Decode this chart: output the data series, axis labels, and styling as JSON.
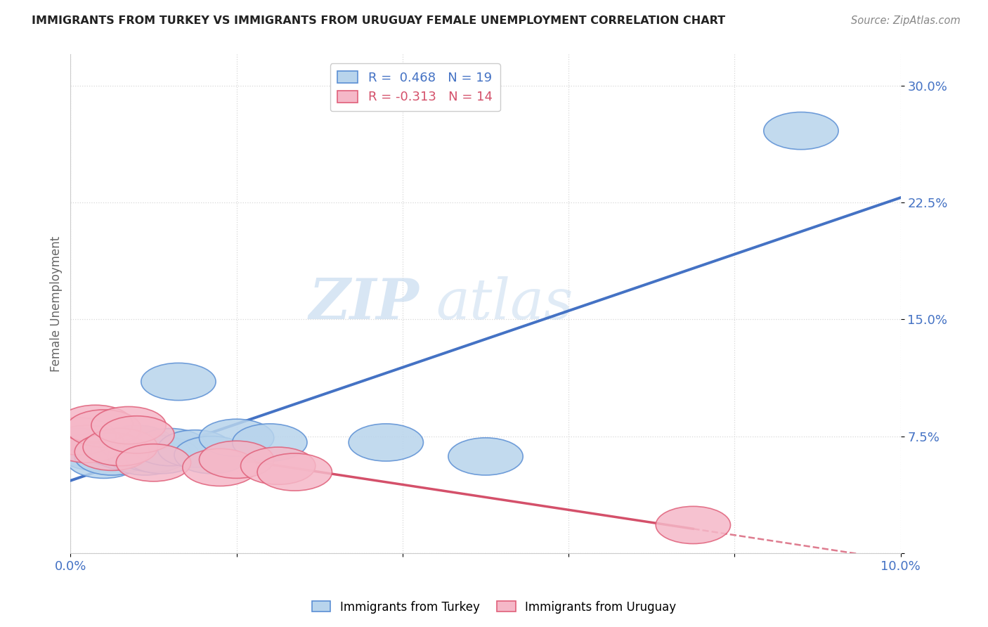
{
  "title": "IMMIGRANTS FROM TURKEY VS IMMIGRANTS FROM URUGUAY FEMALE UNEMPLOYMENT CORRELATION CHART",
  "source": "Source: ZipAtlas.com",
  "ylabel": "Female Unemployment",
  "xlim": [
    0.0,
    0.1
  ],
  "ylim": [
    0.0,
    0.32
  ],
  "xticks": [
    0.0,
    0.02,
    0.04,
    0.06,
    0.08,
    0.1
  ],
  "yticks": [
    0.0,
    0.075,
    0.15,
    0.225,
    0.3
  ],
  "ytick_labels": [
    "",
    "7.5%",
    "15.0%",
    "22.5%",
    "30.0%"
  ],
  "xtick_labels": [
    "0.0%",
    "",
    "",
    "",
    "",
    "10.0%"
  ],
  "turkey_R": 0.468,
  "turkey_N": 19,
  "uruguay_R": -0.313,
  "uruguay_N": 14,
  "turkey_color": "#b8d4ec",
  "turkey_edge_color": "#5b8fd4",
  "uruguay_color": "#f5b8c8",
  "uruguay_edge_color": "#e0607a",
  "turkey_line_color": "#4472c4",
  "uruguay_line_color": "#d4506a",
  "background_color": "#ffffff",
  "grid_color": "#d8d8d8",
  "turkey_x": [
    0.001,
    0.003,
    0.004,
    0.005,
    0.006,
    0.007,
    0.008,
    0.009,
    0.01,
    0.011,
    0.012,
    0.013,
    0.015,
    0.017,
    0.02,
    0.024,
    0.038,
    0.05,
    0.088
  ],
  "turkey_y": [
    0.068,
    0.065,
    0.06,
    0.062,
    0.067,
    0.065,
    0.07,
    0.062,
    0.064,
    0.063,
    0.068,
    0.11,
    0.067,
    0.063,
    0.074,
    0.071,
    0.071,
    0.062,
    0.271
  ],
  "uruguay_x": [
    0.001,
    0.002,
    0.003,
    0.004,
    0.005,
    0.006,
    0.007,
    0.008,
    0.01,
    0.018,
    0.02,
    0.025,
    0.027,
    0.075
  ],
  "uruguay_y": [
    0.075,
    0.07,
    0.083,
    0.08,
    0.065,
    0.068,
    0.082,
    0.076,
    0.058,
    0.055,
    0.06,
    0.056,
    0.052,
    0.018
  ],
  "watermark_zip": "ZIP",
  "watermark_atlas": "atlas",
  "legend_turkey": "R =  0.468   N = 19",
  "legend_uruguay": "R = -0.313   N = 14"
}
